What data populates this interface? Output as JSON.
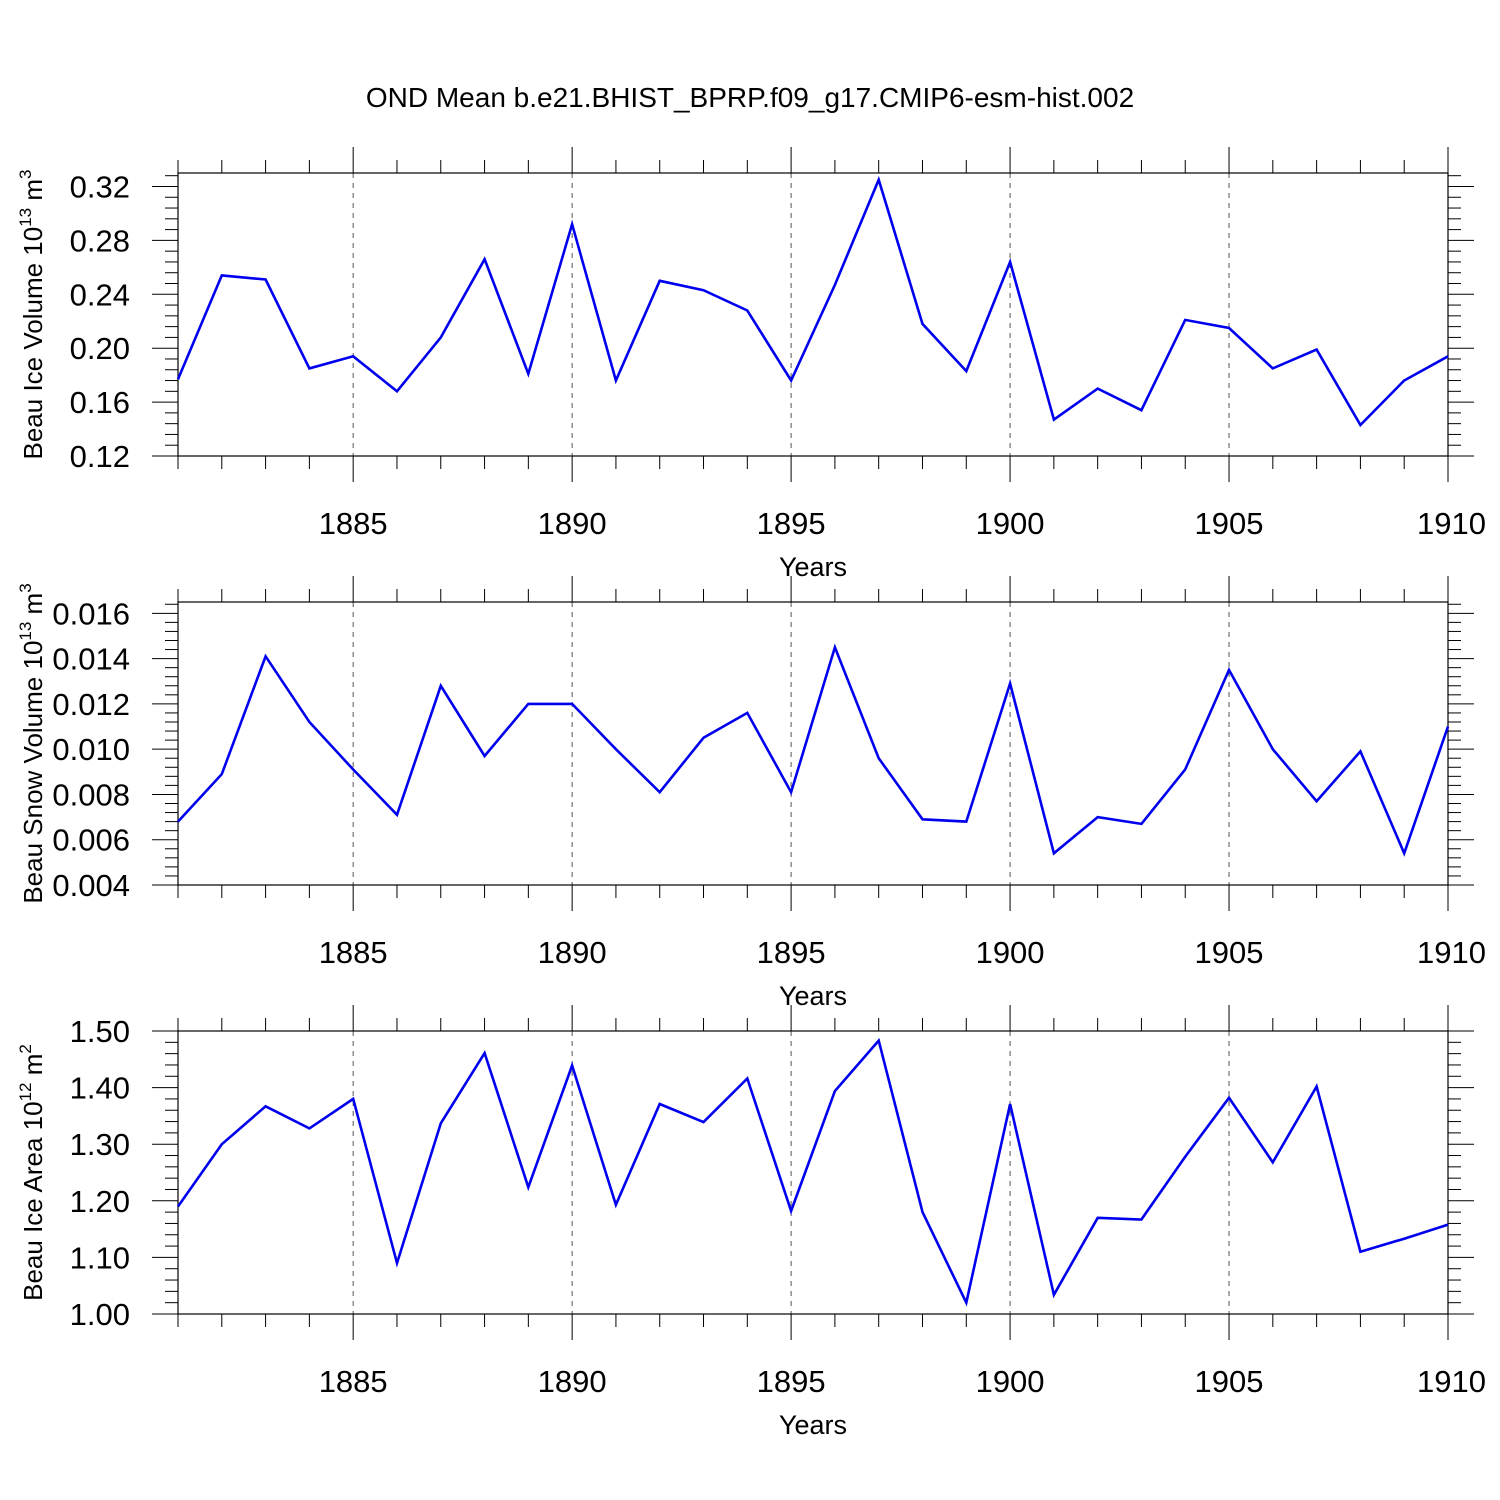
{
  "title": "OND Mean b.e21.BHIST_BPRP.f09_g17.CMIP6-esm-hist.002",
  "colors": {
    "line": "#0000ee",
    "frame": "#000000",
    "grid": "#555555"
  },
  "chart_data": [
    {
      "type": "line",
      "ylabel_main": "Beau Ice Volume 10",
      "ylabel_exp": "13",
      "ylabel_unit": " m",
      "ylabel_unit_exp": "3",
      "xlabel": "Years",
      "xlim": [
        1881,
        1910
      ],
      "ylim": [
        0.12,
        0.33
      ],
      "yticks": [
        "0.12",
        "0.16",
        "0.20",
        "0.24",
        "0.28",
        "0.32"
      ],
      "ytick_values": [
        0.12,
        0.16,
        0.2,
        0.24,
        0.28,
        0.32
      ],
      "xticks": [
        "1885",
        "1890",
        "1895",
        "1900",
        "1905",
        "1910"
      ],
      "xtick_values": [
        1885,
        1890,
        1895,
        1900,
        1905,
        1910
      ],
      "grid": "vertical-dashed-at-major-x",
      "x": [
        1881,
        1882,
        1883,
        1884,
        1885,
        1886,
        1887,
        1888,
        1889,
        1890,
        1891,
        1892,
        1893,
        1894,
        1895,
        1896,
        1897,
        1898,
        1899,
        1900,
        1901,
        1902,
        1903,
        1904,
        1905,
        1906,
        1907,
        1908,
        1909,
        1910
      ],
      "values": [
        0.177,
        0.254,
        0.251,
        0.185,
        0.194,
        0.168,
        0.208,
        0.266,
        0.181,
        0.292,
        0.176,
        0.25,
        0.243,
        0.228,
        0.176,
        0.247,
        0.325,
        0.218,
        0.183,
        0.264,
        0.147,
        0.17,
        0.154,
        0.221,
        0.215,
        0.185,
        0.199,
        0.143,
        0.176,
        0.194
      ]
    },
    {
      "type": "line",
      "ylabel_main": "Beau Snow Volume 10",
      "ylabel_exp": "13",
      "ylabel_unit": " m",
      "ylabel_unit_exp": "3",
      "xlabel": "Years",
      "xlim": [
        1881,
        1910
      ],
      "ylim": [
        0.004,
        0.0165
      ],
      "yticks": [
        "0.004",
        "0.006",
        "0.008",
        "0.010",
        "0.012",
        "0.014",
        "0.016"
      ],
      "ytick_values": [
        0.004,
        0.006,
        0.008,
        0.01,
        0.012,
        0.014,
        0.016
      ],
      "xticks": [
        "1885",
        "1890",
        "1895",
        "1900",
        "1905",
        "1910"
      ],
      "xtick_values": [
        1885,
        1890,
        1895,
        1900,
        1905,
        1910
      ],
      "grid": "vertical-dashed-at-major-x",
      "x": [
        1881,
        1882,
        1883,
        1884,
        1885,
        1886,
        1887,
        1888,
        1889,
        1890,
        1891,
        1892,
        1893,
        1894,
        1895,
        1896,
        1897,
        1898,
        1899,
        1900,
        1901,
        1902,
        1903,
        1904,
        1905,
        1906,
        1907,
        1908,
        1909,
        1910
      ],
      "values": [
        0.0068,
        0.0089,
        0.0141,
        0.0112,
        0.0091,
        0.0071,
        0.0128,
        0.0097,
        0.012,
        0.012,
        0.01,
        0.0081,
        0.0105,
        0.0116,
        0.0081,
        0.0145,
        0.0096,
        0.0069,
        0.0068,
        0.0129,
        0.0054,
        0.007,
        0.0067,
        0.0091,
        0.0135,
        0.01,
        0.0077,
        0.0099,
        0.0054,
        0.011
      ]
    },
    {
      "type": "line",
      "ylabel_main": "Beau Ice Area 10",
      "ylabel_exp": "12",
      "ylabel_unit": " m",
      "ylabel_unit_exp": "2",
      "xlabel": "Years",
      "xlim": [
        1881,
        1910
      ],
      "ylim": [
        1.0,
        1.5
      ],
      "yticks": [
        "1.00",
        "1.10",
        "1.20",
        "1.30",
        "1.40",
        "1.50"
      ],
      "ytick_values": [
        1.0,
        1.1,
        1.2,
        1.3,
        1.4,
        1.5
      ],
      "xticks": [
        "1885",
        "1890",
        "1895",
        "1900",
        "1905",
        "1910"
      ],
      "xtick_values": [
        1885,
        1890,
        1895,
        1900,
        1905,
        1910
      ],
      "grid": "vertical-dashed-at-major-x",
      "x": [
        1881,
        1882,
        1883,
        1884,
        1885,
        1886,
        1887,
        1888,
        1889,
        1890,
        1891,
        1892,
        1893,
        1894,
        1895,
        1896,
        1897,
        1898,
        1899,
        1900,
        1901,
        1902,
        1903,
        1904,
        1905,
        1906,
        1907,
        1908,
        1909,
        1910
      ],
      "values": [
        1.19,
        1.3,
        1.367,
        1.328,
        1.38,
        1.09,
        1.337,
        1.461,
        1.224,
        1.439,
        1.193,
        1.371,
        1.339,
        1.416,
        1.182,
        1.394,
        1.483,
        1.18,
        1.02,
        1.371,
        1.034,
        1.17,
        1.167,
        1.278,
        1.382,
        1.268,
        1.402,
        1.11,
        1.133,
        1.158
      ]
    }
  ]
}
